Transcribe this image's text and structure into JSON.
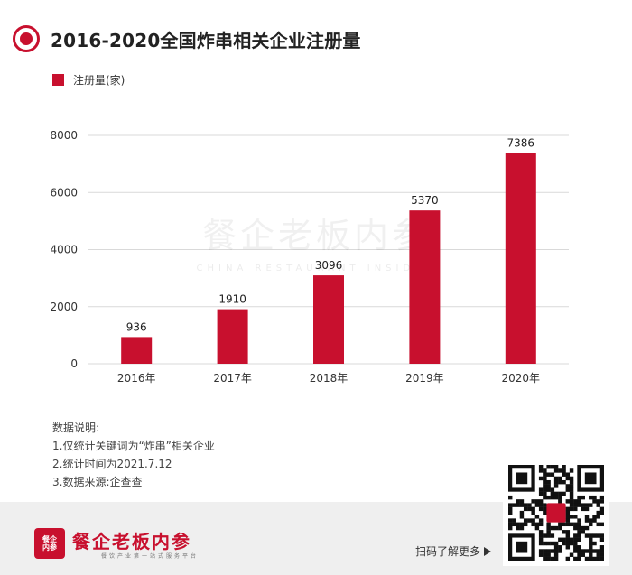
{
  "title": "2016-2020全国炸串相关企业注册量",
  "legend": {
    "label": "注册量(家)"
  },
  "watermark": {
    "main": "餐企老板内参",
    "sub": "CHINA RESTAURANT INSIDER"
  },
  "notes": {
    "heading": "数据说明:",
    "items": [
      "1.仅统计关键词为“炸串”相关企业",
      "2.统计时间为2021.7.12",
      "3.数据来源:企查查"
    ]
  },
  "footer": {
    "logo_text": "餐企内参",
    "brand_name": "餐企老板内参",
    "brand_slogan": "餐饮产业第一站式服务平台",
    "scan_text": "扫码了解更多"
  },
  "colors": {
    "accent": "#c8102e",
    "grid": "#d9d9d9",
    "footer_bg": "#efefef"
  },
  "icons": {
    "header": "target-icon",
    "scan_arrow": "arrow-right-icon",
    "qr": "qr-code-icon"
  },
  "chart_data": {
    "type": "bar",
    "title": "2016-2020全国炸串相关企业注册量",
    "categories": [
      "2016年",
      "2017年",
      "2018年",
      "2019年",
      "2020年"
    ],
    "series": [
      {
        "name": "注册量(家)",
        "values": [
          936,
          1910,
          3096,
          5370,
          7386
        ]
      }
    ],
    "ylim": [
      0,
      8000
    ],
    "yticks": [
      0,
      2000,
      4000,
      6000,
      8000
    ],
    "xlabel": "",
    "ylabel": "",
    "grid": true,
    "legend_position": "top-left"
  }
}
